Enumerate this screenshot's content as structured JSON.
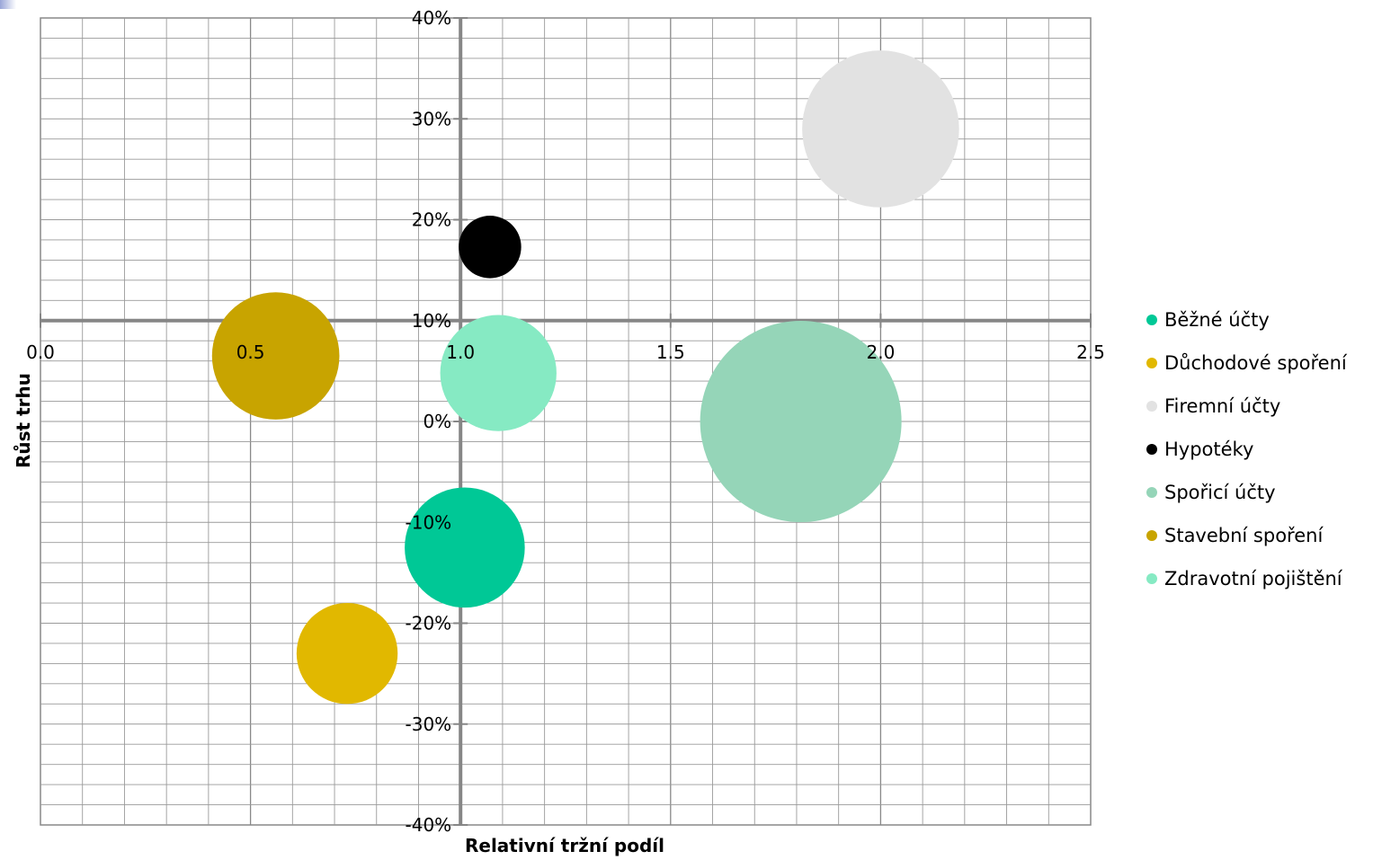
{
  "chart_data": {
    "type": "bubble",
    "xlabel": "Relativní tržní podíl",
    "ylabel": "Růst trhu",
    "xlim": [
      0.0,
      2.5
    ],
    "ylim": [
      -0.4,
      0.4
    ],
    "x_ticks": [
      "0.0",
      "0.5",
      "1.0",
      "1.5",
      "2.0",
      "2.5"
    ],
    "y_ticks": [
      "40%",
      "30%",
      "20%",
      "10%",
      "0%",
      "-10%",
      "-20%",
      "-30%",
      "-40%"
    ],
    "grid": true,
    "legend_position": "right",
    "series": [
      {
        "name": "Běžné účty",
        "color": "#00C896",
        "x": 1.01,
        "y": -0.125,
        "size": 4.8
      },
      {
        "name": "Důchodové spoření",
        "color": "#E1B800",
        "x": 0.73,
        "y": -0.23,
        "size": 3.4
      },
      {
        "name": "Firemní účty",
        "color": "#E2E2E2",
        "x": 2.0,
        "y": 0.29,
        "size": 8.2
      },
      {
        "name": "Hypotéky",
        "color": "#000000",
        "x": 1.07,
        "y": 0.173,
        "size": 1.3
      },
      {
        "name": "Spořicí účty",
        "color": "#95D5B8",
        "x": 1.81,
        "y": 0.0,
        "size": 13.5
      },
      {
        "name": "Stavební spoření",
        "color": "#C8A400",
        "x": 0.56,
        "y": 0.065,
        "size": 5.4
      },
      {
        "name": "Zdravotní pojištění",
        "color": "#86EAC3",
        "x": 1.09,
        "y": 0.048,
        "size": 4.5
      }
    ]
  }
}
